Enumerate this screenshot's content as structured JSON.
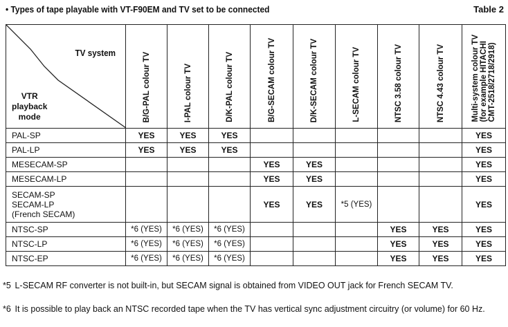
{
  "title": "• Types of tape playable with VT-F90EM and TV set to be connected",
  "table_label": "Table 2",
  "corner": {
    "tv_system": "TV system",
    "vtr_mode": [
      "VTR",
      "playback",
      "mode"
    ]
  },
  "columns": [
    [
      "B/G-PAL colour TV"
    ],
    [
      "I-PAL colour TV"
    ],
    [
      "D/K-PAL colour TV"
    ],
    [
      "B/G-SECAM colour TV"
    ],
    [
      "D/K-SECAM colour TV"
    ],
    [
      "L-SECAM colour TV"
    ],
    [
      "NTSC 3.58 colour TV"
    ],
    [
      "NTSC 4.43 colour TV"
    ],
    [
      "Multi-system colour TV",
      "(for example HITACHI",
      "CMT-2518/2718/2918)"
    ]
  ],
  "rows": [
    {
      "mode": [
        "PAL-SP"
      ],
      "cells": [
        "YES",
        "YES",
        "YES",
        "",
        "",
        "",
        "",
        "",
        "YES"
      ]
    },
    {
      "mode": [
        "PAL-LP"
      ],
      "cells": [
        "YES",
        "YES",
        "YES",
        "",
        "",
        "",
        "",
        "",
        "YES"
      ]
    },
    {
      "mode": [
        "MESECAM-SP"
      ],
      "cells": [
        "",
        "",
        "",
        "YES",
        "YES",
        "",
        "",
        "",
        "YES"
      ]
    },
    {
      "mode": [
        "MESECAM-LP"
      ],
      "cells": [
        "",
        "",
        "",
        "YES",
        "YES",
        "",
        "",
        "",
        "YES"
      ]
    },
    {
      "mode": [
        "SECAM-SP",
        "SECAM-LP",
        "(French SECAM)"
      ],
      "cells": [
        "",
        "",
        "",
        "YES",
        "YES",
        "*5 (YES)",
        "",
        "",
        "YES"
      ]
    },
    {
      "mode": [
        "NTSC-SP"
      ],
      "cells": [
        "*6 (YES)",
        "*6 (YES)",
        "*6 (YES)",
        "",
        "",
        "",
        "YES",
        "YES",
        "YES"
      ]
    },
    {
      "mode": [
        "NTSC-LP"
      ],
      "cells": [
        "*6 (YES)",
        "*6 (YES)",
        "*6 (YES)",
        "",
        "",
        "",
        "YES",
        "YES",
        "YES"
      ]
    },
    {
      "mode": [
        "NTSC-EP"
      ],
      "cells": [
        "*6 (YES)",
        "*6 (YES)",
        "*6 (YES)",
        "",
        "",
        "",
        "YES",
        "YES",
        "YES"
      ]
    }
  ],
  "footnotes": [
    {
      "mark": "*5",
      "text": "L-SECAM RF converter is not built-in, but SECAM signal is obtained from VIDEO OUT jack for French SECAM TV."
    },
    {
      "mark": "*6",
      "text": "It is possible to play back an NTSC recorded tape when the TV has vertical sync adjustment circuitry (or volume) for 60 Hz."
    }
  ]
}
